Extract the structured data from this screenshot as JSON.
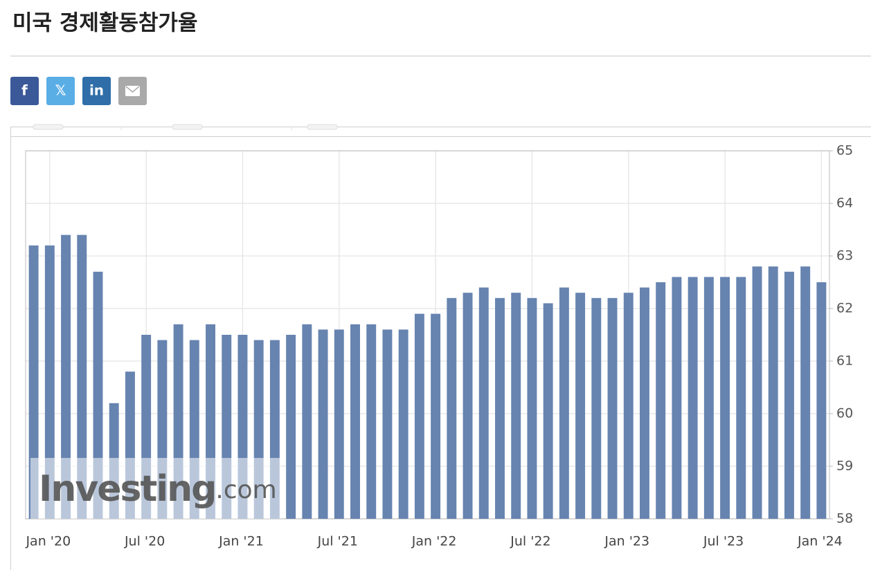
{
  "header": {
    "title": "미국 경제활동참가율"
  },
  "share_buttons": [
    {
      "label": "f",
      "color": "#3b5998"
    },
    {
      "label": "𝕏",
      "color": "#5aaee6"
    },
    {
      "label": "in",
      "color": "#2f6ea8"
    }
  ],
  "chart_data": {
    "type": "bar",
    "watermark": {
      "brand": "Investing",
      "suffix": ".com"
    },
    "color": "#6784b0",
    "categories": [
      null,
      "Jan '20",
      null,
      null,
      null,
      null,
      null,
      "Jul '20",
      null,
      null,
      null,
      null,
      null,
      "Jan '21",
      null,
      null,
      null,
      null,
      null,
      "Jul '21",
      null,
      null,
      null,
      null,
      null,
      "Jan '22",
      null,
      null,
      null,
      null,
      null,
      "Jul '22",
      null,
      null,
      null,
      null,
      null,
      "Jan '23",
      null,
      null,
      null,
      null,
      null,
      "Jul '23",
      null,
      null,
      null,
      null,
      null,
      "Jan '24"
    ],
    "values": [
      63.2,
      63.2,
      63.4,
      63.4,
      62.7,
      60.2,
      60.8,
      61.5,
      61.4,
      61.7,
      61.4,
      61.7,
      61.5,
      61.5,
      61.4,
      61.4,
      61.5,
      61.7,
      61.6,
      61.6,
      61.7,
      61.7,
      61.6,
      61.6,
      61.9,
      61.9,
      62.2,
      62.3,
      62.4,
      62.2,
      62.3,
      62.2,
      62.1,
      62.4,
      62.3,
      62.2,
      62.2,
      62.3,
      62.4,
      62.5,
      62.6,
      62.6,
      62.6,
      62.6,
      62.6,
      62.8,
      62.8,
      62.7,
      62.8,
      62.5
    ],
    "ylim": [
      58,
      65
    ],
    "yticks": [
      58,
      59,
      60,
      61,
      62,
      63,
      64,
      65
    ],
    "grid": true
  }
}
